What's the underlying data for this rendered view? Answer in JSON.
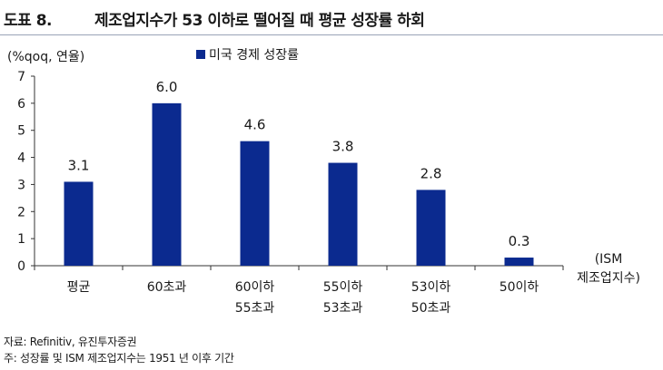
{
  "header": {
    "figure_label": "도표 8.",
    "title": "제조업지수가 53 이하로 떨어질 때 평균 성장률 하회"
  },
  "chart_data": {
    "type": "bar",
    "title": "제조업지수가 53 이하로 떨어질 때 평균 성장률 하회",
    "ylabel": "(%qoq, 연율)",
    "xlabel": "(ISM 제조업지수)",
    "ylim": [
      0,
      7
    ],
    "yticks": [
      0,
      1,
      2,
      3,
      4,
      5,
      6,
      7
    ],
    "grid": false,
    "legend_position": "top-left",
    "categories": [
      [
        "평균"
      ],
      [
        "60초과"
      ],
      [
        "60이하",
        "55초과"
      ],
      [
        "55이하",
        "53초과"
      ],
      [
        "53이하",
        "50초과"
      ],
      [
        "50이하"
      ]
    ],
    "series": [
      {
        "name": "미국 경제 성장률",
        "color": "#0b2a8f",
        "values": [
          3.1,
          6.0,
          4.6,
          3.8,
          2.8,
          0.3
        ],
        "labels": [
          "3.1",
          "6.0",
          "4.6",
          "3.8",
          "2.8",
          "0.3"
        ]
      }
    ]
  },
  "footer": {
    "source": "자료: Refinitiv, 유진투자증권",
    "note": "주: 성장률 및 ISM 제조업지수는 1951 년 이후 기간"
  }
}
